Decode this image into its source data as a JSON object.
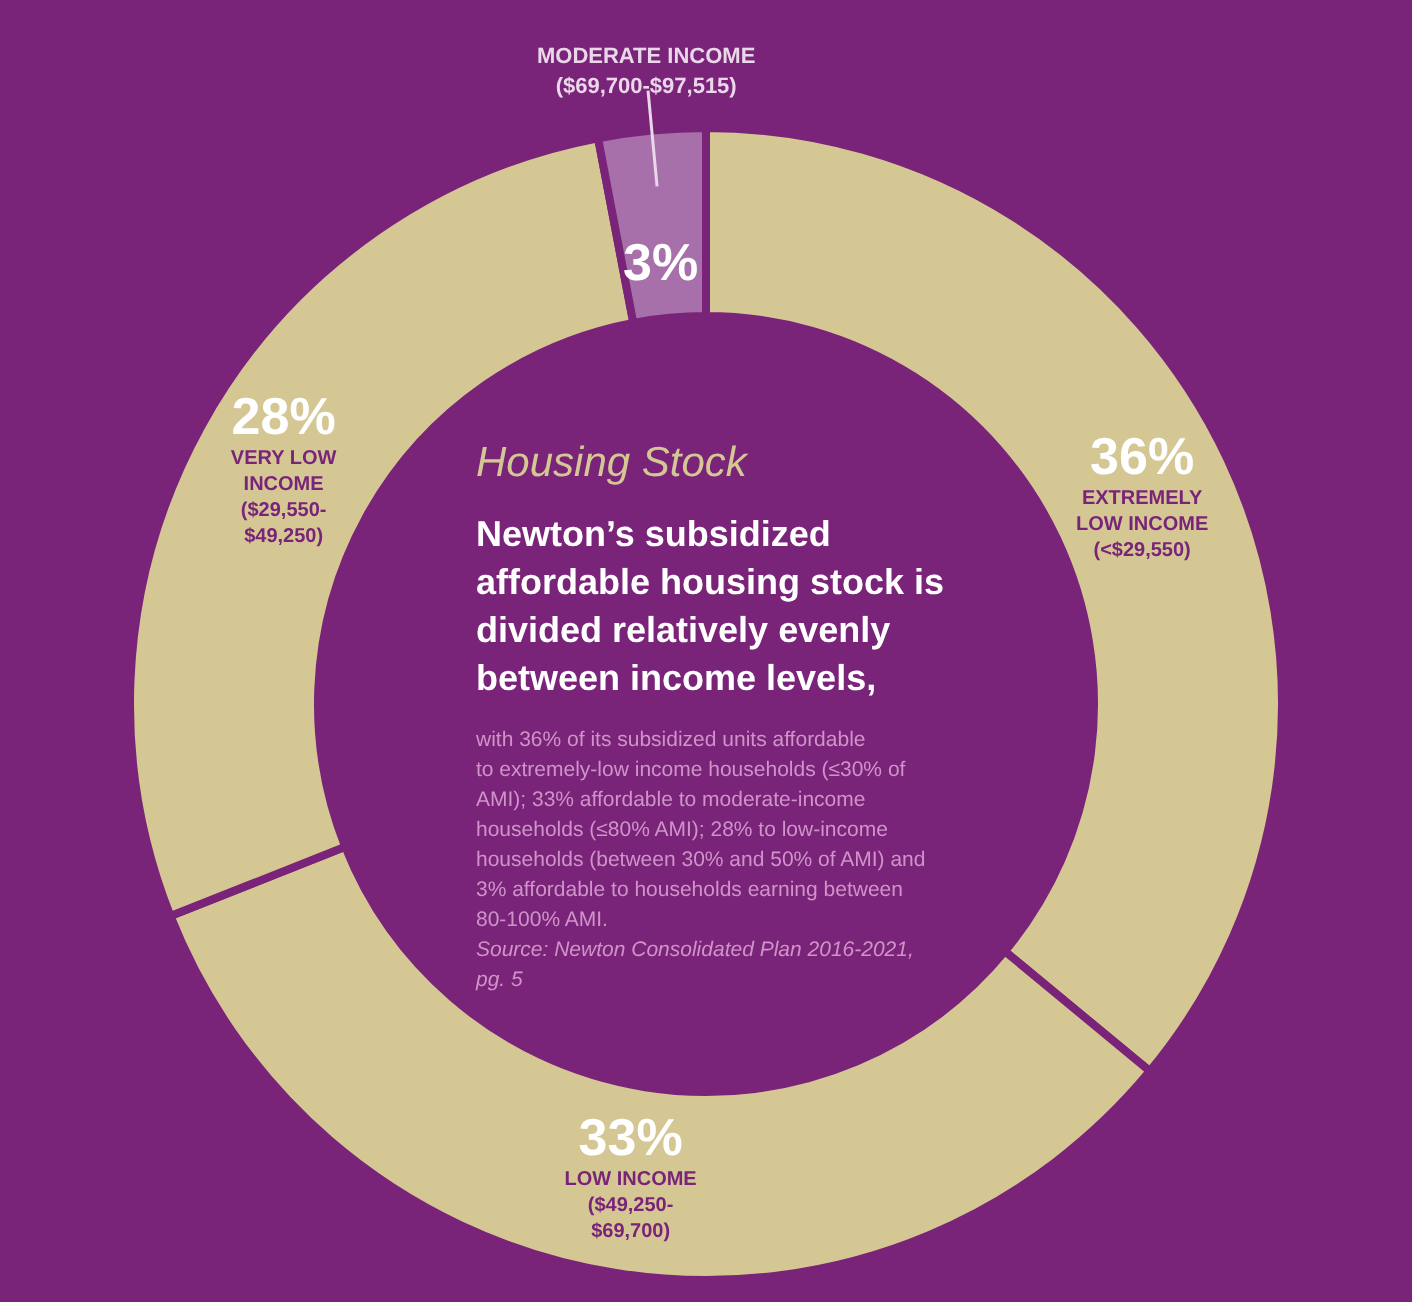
{
  "chart_data": {
    "type": "donut",
    "title": "Housing Stock",
    "subtitle": "Newton’s subsidized affordable housing stock is divided relatively evenly between income levels,",
    "annotations": [
      "with 36% of its subsidized units affordable to extremely-low income households (≤30% of AMI); 33% affordable to moderate-income households (≤80% AMI); 28% to low-income households (between 30% and 50% of AMI) and 3% affordable to households earning between 80-100% AMI.",
      "Source: Newton Consolidated Plan 2016-2021, pg. 5"
    ],
    "categories": [
      "EXTREMELY\nLOW INCOME\n(<$29,550)",
      "LOW INCOME\n($49,250-\n$69,700)",
      "VERY LOW\nINCOME\n($29,550-\n$49,250)",
      "MODERATE INCOME\n($69,700-$97,515)"
    ],
    "values": [
      36,
      33,
      28,
      3
    ],
    "value_labels": [
      "36%",
      "33%",
      "28%",
      "3%"
    ],
    "colors": [
      "#d5c794",
      "#d5c794",
      "#d5c794",
      "#a770ab"
    ]
  }
}
